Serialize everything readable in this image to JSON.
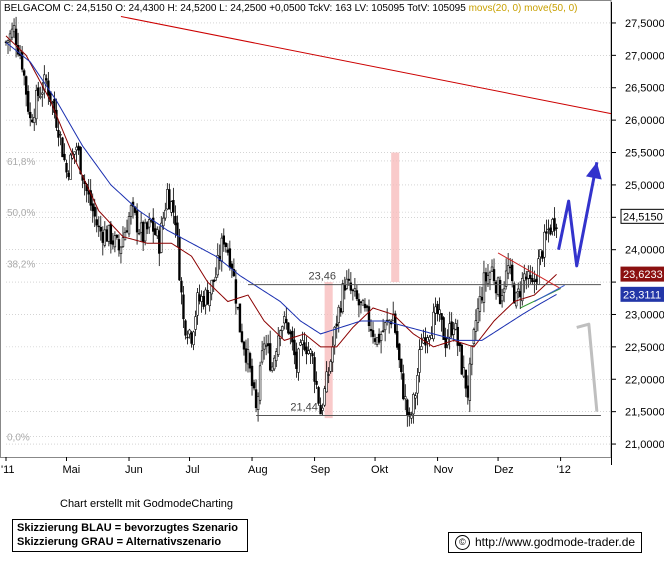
{
  "header": {
    "symbol": "BELGACOM",
    "close_label": "C:",
    "close": "24,5150",
    "open_label": "O:",
    "open": "24,4300",
    "high_label": "H:",
    "high": "24,5200",
    "low_label": "L:",
    "low": "24,2500",
    "change": "+0,0500",
    "tickvol_label": "TckV:",
    "tickvol": "163",
    "lastvol_label": "LV:",
    "lastvol": "105095",
    "totvol_label": "TotV:",
    "totvol": "105095",
    "ma1": "movs(20, 0)",
    "ma2": "move(50, 0)"
  },
  "colors": {
    "candle": "#000000",
    "ma20": "#8b0000",
    "ma50": "#1a2fb0",
    "trendline": "#cc0000",
    "scenario_blue": "#3333cc",
    "scenario_gray": "#bfbfbf",
    "highlight": "#f7b8b8",
    "grid": "#bbbbbb",
    "ma20_badge": "#8b1010",
    "ma50_badge": "#2336a8",
    "price_badge": "#ffffff",
    "fib_text": "#aaaaaa"
  },
  "chart_data": {
    "type": "candlestick",
    "title": "BELGACOM",
    "y_axis_side": "right",
    "ylim": [
      20.8,
      27.7
    ],
    "y_ticks": [
      {
        "value": 27.5,
        "label": "27,5000"
      },
      {
        "value": 27.0,
        "label": "27,0000"
      },
      {
        "value": 26.5,
        "label": "26,5000"
      },
      {
        "value": 26.0,
        "label": "26,0000"
      },
      {
        "value": 25.5,
        "label": "25,5000"
      },
      {
        "value": 25.0,
        "label": "25,0000"
      },
      {
        "value": 24.5,
        "label": ""
      },
      {
        "value": 24.0,
        "label": "24,0000"
      },
      {
        "value": 23.5,
        "label": ""
      },
      {
        "value": 23.0,
        "label": "23,0000"
      },
      {
        "value": 22.5,
        "label": "22,5000"
      },
      {
        "value": 22.0,
        "label": "22,0000"
      },
      {
        "value": 21.5,
        "label": "21,5000"
      },
      {
        "value": 21.0,
        "label": "21,0000"
      }
    ],
    "x_labels": [
      "'11",
      "Mai",
      "Jun",
      "Jul",
      "Aug",
      "Sep",
      "Okt",
      "Nov",
      "Dez",
      "'12"
    ],
    "x_label_days": [
      0,
      30,
      61,
      91,
      122,
      153,
      183,
      214,
      244,
      275
    ],
    "x_range_days": [
      0,
      300
    ],
    "fib_levels": [
      {
        "label": "61,8%",
        "value": 25.37
      },
      {
        "label": "50,0%",
        "value": 24.58
      },
      {
        "label": "38,2%",
        "value": 23.79
      },
      {
        "label": "0,0%",
        "value": 21.12
      }
    ],
    "horizontal_levels": [
      {
        "label": "23,46",
        "value": 23.46
      },
      {
        "label": "21,44",
        "value": 21.44
      }
    ],
    "price_markers": [
      {
        "label": "24,5150",
        "value": 24.515,
        "role": "close"
      },
      {
        "label": "23,6233",
        "value": 23.6233,
        "role": "ma20"
      },
      {
        "label": "23,3111",
        "value": 23.3111,
        "role": "ma50"
      }
    ],
    "highlight_bands": [
      {
        "day_start": 158,
        "day_end": 162,
        "low": 21.4,
        "high": 23.5
      },
      {
        "day_start": 191,
        "day_end": 195,
        "low": 23.5,
        "high": 25.5
      }
    ],
    "close_anchors": [
      [
        0,
        27.2
      ],
      [
        4,
        27.4
      ],
      [
        8,
        26.9
      ],
      [
        12,
        26.0
      ],
      [
        16,
        26.4
      ],
      [
        20,
        26.6
      ],
      [
        26,
        25.9
      ],
      [
        30,
        25.2
      ],
      [
        35,
        25.6
      ],
      [
        40,
        24.9
      ],
      [
        46,
        24.3
      ],
      [
        52,
        24.2
      ],
      [
        56,
        24.0
      ],
      [
        62,
        24.6
      ],
      [
        68,
        24.2
      ],
      [
        72,
        24.4
      ],
      [
        76,
        24.1
      ],
      [
        80,
        24.9
      ],
      [
        84,
        24.5
      ],
      [
        88,
        22.9
      ],
      [
        92,
        22.7
      ],
      [
        95,
        23.2
      ],
      [
        100,
        23.3
      ],
      [
        104,
        23.6
      ],
      [
        108,
        24.2
      ],
      [
        112,
        23.8
      ],
      [
        116,
        22.8
      ],
      [
        120,
        22.3
      ],
      [
        124,
        21.5
      ],
      [
        128,
        22.6
      ],
      [
        132,
        22.2
      ],
      [
        136,
        22.9
      ],
      [
        140,
        22.8
      ],
      [
        144,
        22.2
      ],
      [
        148,
        22.6
      ],
      [
        152,
        22.3
      ],
      [
        156,
        21.5
      ],
      [
        160,
        22.1
      ],
      [
        164,
        22.9
      ],
      [
        168,
        23.5
      ],
      [
        172,
        23.3
      ],
      [
        176,
        23.1
      ],
      [
        180,
        22.9
      ],
      [
        184,
        22.6
      ],
      [
        188,
        22.8
      ],
      [
        192,
        23.0
      ],
      [
        196,
        22.0
      ],
      [
        200,
        21.3
      ],
      [
        203,
        21.8
      ],
      [
        206,
        22.6
      ],
      [
        210,
        22.8
      ],
      [
        214,
        23.0
      ],
      [
        218,
        22.6
      ],
      [
        222,
        22.9
      ],
      [
        226,
        22.2
      ],
      [
        229,
        21.8
      ],
      [
        233,
        22.9
      ],
      [
        237,
        23.5
      ],
      [
        241,
        23.7
      ],
      [
        245,
        23.3
      ],
      [
        249,
        23.7
      ],
      [
        253,
        23.2
      ],
      [
        257,
        23.6
      ],
      [
        261,
        23.4
      ],
      [
        265,
        23.9
      ],
      [
        269,
        24.3
      ],
      [
        273,
        24.5
      ]
    ],
    "ma20_anchors": [
      [
        0,
        27.3
      ],
      [
        10,
        27.0
      ],
      [
        22,
        26.3
      ],
      [
        34,
        25.4
      ],
      [
        46,
        24.6
      ],
      [
        58,
        24.2
      ],
      [
        70,
        24.1
      ],
      [
        82,
        24.1
      ],
      [
        92,
        23.9
      ],
      [
        100,
        23.5
      ],
      [
        110,
        23.2
      ],
      [
        120,
        23.3
      ],
      [
        128,
        22.9
      ],
      [
        138,
        22.6
      ],
      [
        148,
        22.7
      ],
      [
        156,
        22.5
      ],
      [
        164,
        22.5
      ],
      [
        172,
        22.8
      ],
      [
        182,
        23.1
      ],
      [
        192,
        23.0
      ],
      [
        202,
        22.7
      ],
      [
        212,
        22.5
      ],
      [
        222,
        22.6
      ],
      [
        232,
        22.5
      ],
      [
        242,
        22.9
      ],
      [
        252,
        23.2
      ],
      [
        262,
        23.3
      ],
      [
        273,
        23.62
      ]
    ],
    "ma50_anchors": [
      [
        0,
        27.2
      ],
      [
        12,
        26.9
      ],
      [
        25,
        26.3
      ],
      [
        38,
        25.6
      ],
      [
        52,
        25.0
      ],
      [
        66,
        24.6
      ],
      [
        80,
        24.3
      ],
      [
        92,
        24.1
      ],
      [
        104,
        23.9
      ],
      [
        116,
        23.6
      ],
      [
        126,
        23.4
      ],
      [
        136,
        23.2
      ],
      [
        146,
        22.9
      ],
      [
        156,
        22.7
      ],
      [
        166,
        22.8
      ],
      [
        176,
        22.9
      ],
      [
        188,
        22.9
      ],
      [
        200,
        22.8
      ],
      [
        212,
        22.7
      ],
      [
        224,
        22.6
      ],
      [
        236,
        22.6
      ],
      [
        246,
        22.8
      ],
      [
        256,
        23.0
      ],
      [
        264,
        23.15
      ],
      [
        273,
        23.31
      ]
    ],
    "long_trendline": [
      [
        57,
        27.6
      ],
      [
        300,
        26.1
      ]
    ],
    "triangle_lines": [
      {
        "points": [
          [
            244,
            23.95
          ],
          [
            275,
            23.4
          ]
        ],
        "color": "red"
      },
      {
        "points": [
          [
            255,
            23.1
          ],
          [
            275,
            23.4
          ]
        ],
        "color": "green"
      },
      {
        "points": [
          [
            262,
            23.2
          ],
          [
            277,
            23.45
          ]
        ],
        "color": "blue"
      }
    ],
    "scenario_blue": [
      [
        274,
        24.0
      ],
      [
        279,
        24.75
      ],
      [
        283,
        23.75
      ],
      [
        293,
        25.35
      ]
    ],
    "scenario_gray": [
      [
        283,
        22.8
      ],
      [
        289,
        22.85
      ],
      [
        293,
        21.5
      ]
    ]
  },
  "footer": {
    "credit": "Chart erstellt mit GodmodeCharting",
    "legend_line1": "Skizzierung BLAU = bevorzugtes Szenario",
    "legend_line2": "Skizzierung GRAU = Alternativszenario",
    "copyright_symbol": "©",
    "url": "http://www.godmode-trader.de"
  }
}
